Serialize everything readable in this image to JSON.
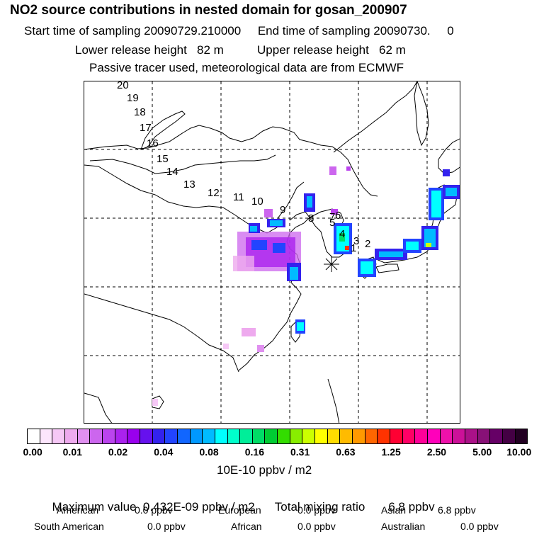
{
  "header": {
    "title": "NO2 source contributions in nested domain for gosan_200907",
    "sampling": "Start time of sampling 20090729.210000     End time of sampling 20090730.     0",
    "release": "Lower release height   82 m          Upper release height   62 m",
    "tracer": "Passive tracer used, meteorological data are from ECMWF"
  },
  "map": {
    "receptor_marker": "station-asterisk",
    "trajectory_labels": [
      "20",
      "19",
      "18",
      "17",
      "16",
      "15",
      "14",
      "13",
      "12",
      "11",
      "10",
      "9",
      "8",
      "7",
      "6",
      "5",
      "4",
      "3",
      "2",
      "1"
    ]
  },
  "colorbar": {
    "colors": [
      "#ffffff",
      "#fde6fd",
      "#f6c8f6",
      "#eeaaee",
      "#e090f0",
      "#cc66ee",
      "#bb44ee",
      "#aa22ee",
      "#9900ee",
      "#6611ee",
      "#3322ee",
      "#2244ff",
      "#1166ff",
      "#0099ff",
      "#00bbff",
      "#00ffff",
      "#00ffcc",
      "#00ee99",
      "#00dd66",
      "#00cc33",
      "#33dd00",
      "#88ee00",
      "#ccff00",
      "#ffff00",
      "#ffdd00",
      "#ffbb00",
      "#ff9900",
      "#ff6600",
      "#ff3300",
      "#ff0033",
      "#ff0066",
      "#ff0099",
      "#ff00bb",
      "#ee11aa",
      "#cc1199",
      "#aa1188",
      "#881177",
      "#660066",
      "#440044",
      "#220022"
    ],
    "tick_labels": [
      "0.00",
      "0.01",
      "0.02",
      "0.04",
      "0.08",
      "0.16",
      "0.31",
      "0.63",
      "1.25",
      "2.50",
      "5.00",
      "10.00"
    ],
    "units": "10E-10 ppbv / m2"
  },
  "summary": {
    "maximum": "Maximum value  0.432E-09 ppbv / m2",
    "total": "Total mixing ratio       6.8 ppbv",
    "american_label": "American",
    "american_value": "0.0 ppbv",
    "european_label": "European",
    "european_value": "0.0 ppbv",
    "asian_label": "Asian",
    "asian_value": "6.8 ppbv",
    "south_american_label": "South American",
    "south_american_value": "0.0 ppbv",
    "african_label": "African",
    "african_value": "0.0 ppbv",
    "australian_label": "Australian",
    "australian_value": "0.0 ppbv"
  }
}
